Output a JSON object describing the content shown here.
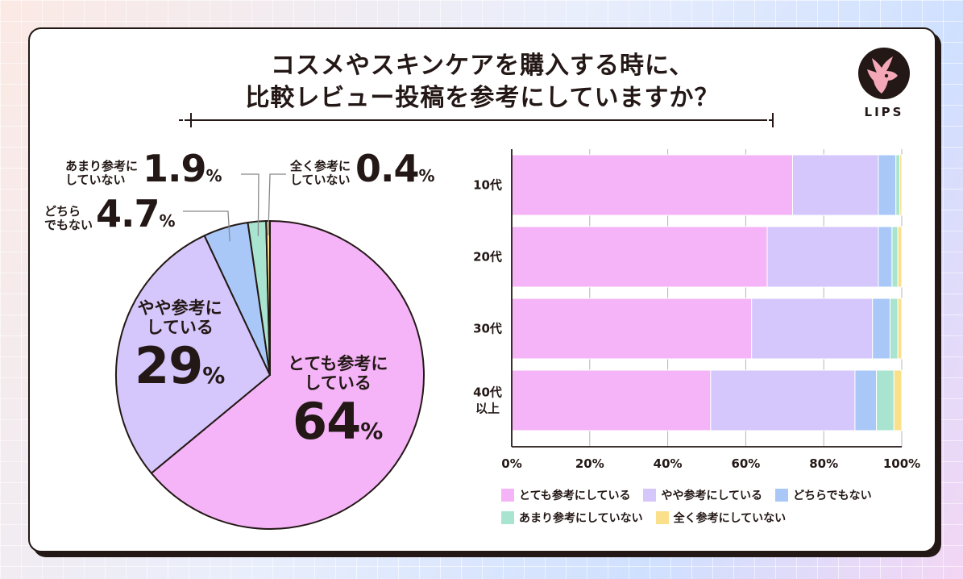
{
  "title_lines": [
    "コスメやスキンケアを購入する時に、",
    "比較レビュー投稿を参考にしていますか？"
  ],
  "logo_text": "LIPS",
  "colors": {
    "very_helpful": "#f4b4f7",
    "somewhat": "#d5c6fb",
    "neither": "#a9c8f8",
    "not_much": "#a8e4d0",
    "not_at_all": "#fbe08c",
    "ink": "#231815"
  },
  "pie_labels": {
    "very": {
      "lines": [
        "とても参考に",
        "している"
      ],
      "value": "64",
      "unit": "%"
    },
    "somewhat": {
      "lines": [
        "やや参考に",
        "している"
      ],
      "value": "29",
      "unit": "%"
    },
    "neither": {
      "lines": [
        "どちら",
        "でもない"
      ],
      "value": "4.7",
      "unit": "%"
    },
    "not_much": {
      "lines": [
        "あまり参考に",
        "していない"
      ],
      "value": "1.9",
      "unit": "%"
    },
    "not_at_all": {
      "lines": [
        "全く参考に",
        "していない"
      ],
      "value": "0.4",
      "unit": "%"
    }
  },
  "chart_data": [
    {
      "type": "pie",
      "categories": [
        "とても参考にしている",
        "やや参考にしている",
        "どちらでもない",
        "あまり参考にしていない",
        "全く参考にしていない"
      ],
      "values": [
        64,
        29,
        4.7,
        1.9,
        0.4
      ],
      "unit": "%"
    },
    {
      "type": "bar",
      "orientation": "horizontal",
      "stacked": true,
      "categories": [
        "10代",
        "20代",
        "30代",
        "40代\n以上"
      ],
      "series": [
        {
          "name": "とても参考にしている",
          "values": [
            72,
            65.5,
            61.5,
            51
          ]
        },
        {
          "name": "やや参考にしている",
          "values": [
            22,
            28.5,
            31,
            37
          ]
        },
        {
          "name": "どちらでもない",
          "values": [
            4.5,
            3.5,
            4.5,
            5.5
          ]
        },
        {
          "name": "あまり参考にしていない",
          "values": [
            1,
            1.5,
            2,
            4.5
          ]
        },
        {
          "name": "全く参考にしていない",
          "values": [
            0.5,
            1,
            1,
            2
          ]
        }
      ],
      "xlim": [
        0,
        100
      ],
      "x_ticks": [
        "0%",
        "20%",
        "40%",
        "60%",
        "80%",
        "100%"
      ],
      "grid": true,
      "legend_position": "bottom"
    }
  ]
}
